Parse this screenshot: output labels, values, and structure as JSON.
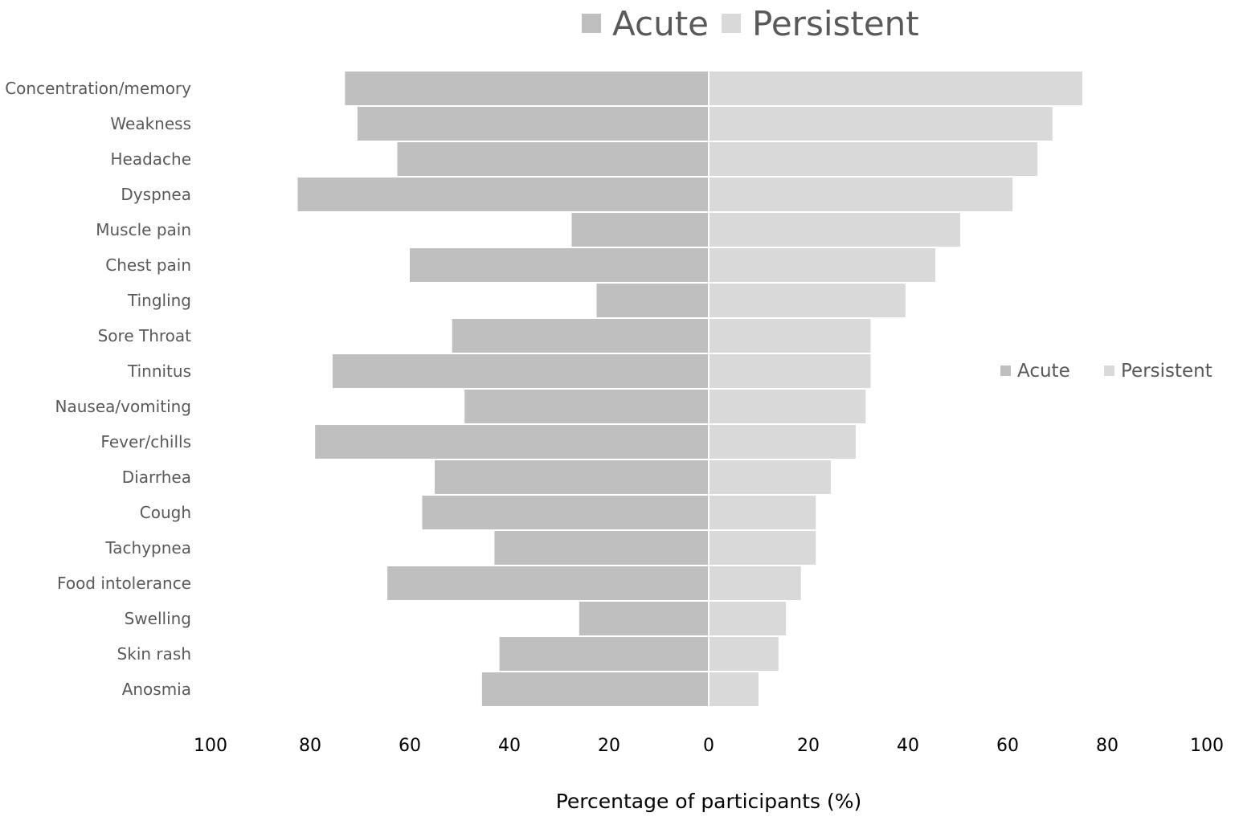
{
  "chart_data": {
    "type": "bar",
    "orientation": "horizontal-diverging",
    "title": "",
    "xlabel": "Percentage of participants (%)",
    "ylabel": "",
    "xlim": [
      -100,
      100
    ],
    "x_ticks": [
      -100,
      -80,
      -60,
      -40,
      -20,
      0,
      20,
      40,
      60,
      80,
      100
    ],
    "x_tick_labels": [
      "100",
      "80",
      "60",
      "40",
      "20",
      "0",
      "20",
      "40",
      "60",
      "80",
      "100"
    ],
    "grid": false,
    "categories": [
      "Concentration/memory",
      "Weakness",
      "Headache",
      "Dyspnea",
      "Muscle pain",
      "Chest pain",
      "Tingling",
      "Sore Throat",
      "Tinnitus",
      "Nausea/vomiting",
      "Fever/chills",
      "Diarrhea",
      "Cough",
      "Tachypnea",
      "Food intolerance",
      "Swelling",
      "Skin rash",
      "Anosmia"
    ],
    "series": [
      {
        "name": "Acute",
        "color": "#bfbfbf",
        "direction": "left",
        "values": [
          73,
          70.5,
          62.5,
          82.5,
          27.5,
          60,
          22.5,
          51.5,
          75.5,
          49,
          79,
          55,
          57.5,
          43,
          64.5,
          26,
          42,
          45.5
        ]
      },
      {
        "name": "Persistent",
        "color": "#d9d9d9",
        "direction": "right",
        "values": [
          75,
          69,
          66,
          61,
          50.5,
          45.5,
          39.5,
          32.5,
          32.5,
          31.5,
          29.5,
          24.5,
          21.5,
          21.5,
          18.5,
          15.5,
          14,
          10
        ]
      }
    ],
    "legends": [
      {
        "placement": "top-center",
        "items": [
          "Acute",
          "Persistent"
        ]
      },
      {
        "placement": "right",
        "items": [
          "Acute",
          "Persistent"
        ]
      }
    ]
  }
}
